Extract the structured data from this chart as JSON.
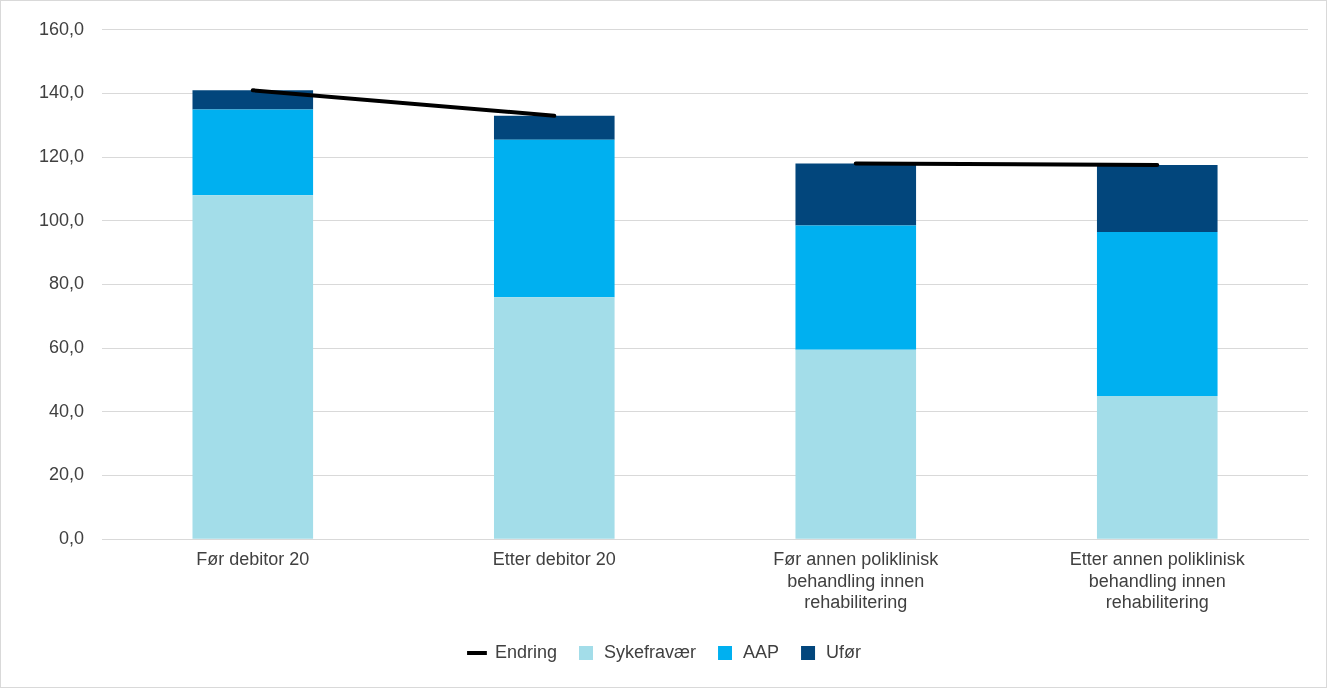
{
  "chart_data": {
    "type": "bar",
    "stacked": true,
    "categories": [
      "Før debitor 20",
      "Etter debitor 20",
      "Før annen poliklinisk behandling innen rehabilitering",
      "Etter annen poliklinisk behandling innen rehabilitering"
    ],
    "series": [
      {
        "name": "Sykefravær",
        "color": "#a3dde9",
        "values": [
          108,
          76,
          59.5,
          45
        ]
      },
      {
        "name": "AAP",
        "color": "#00b0f0",
        "values": [
          27,
          49.5,
          39,
          51.5
        ]
      },
      {
        "name": "Ufør",
        "color": "#02467c",
        "values": [
          6,
          7.5,
          19.5,
          21
        ]
      },
      {
        "name": "Endring",
        "type": "line",
        "color": "#000000",
        "values": [
          141,
          133,
          null,
          null
        ]
      },
      {
        "type": "line",
        "color": "#000000",
        "values": [
          null,
          null,
          118,
          117.5
        ]
      }
    ],
    "ylim": [
      0,
      160
    ],
    "yticks": [
      {
        "value": 0,
        "label": "0,0"
      },
      {
        "value": 20,
        "label": "20,0"
      },
      {
        "value": 40,
        "label": "40,0"
      },
      {
        "value": 60,
        "label": "60,0"
      },
      {
        "value": 80,
        "label": "80,0"
      },
      {
        "value": 100,
        "label": "100,0"
      },
      {
        "value": 120,
        "label": "120,0"
      },
      {
        "value": 140,
        "label": "140,0"
      },
      {
        "value": 160,
        "label": "160,0"
      }
    ],
    "grid": "y",
    "legend": "bottom",
    "marker": "none"
  }
}
